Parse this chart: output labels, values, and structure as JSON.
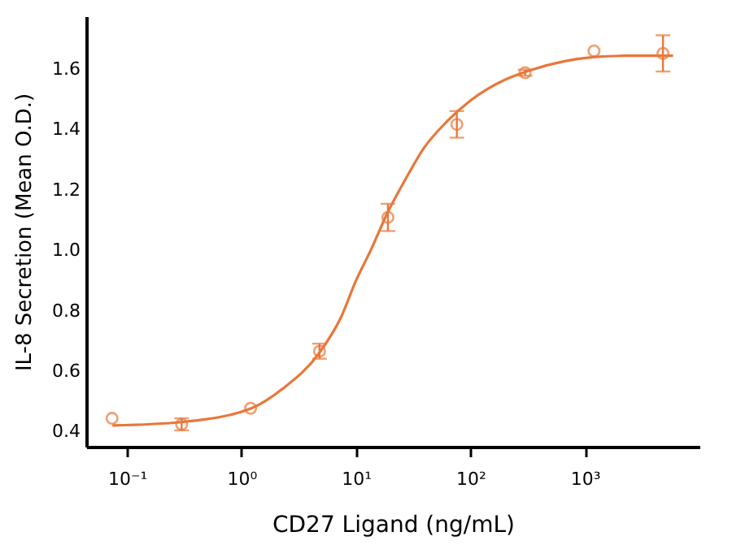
{
  "chart_data": {
    "type": "scatter",
    "xlabel": "CD27 Ligand (ng/mL)",
    "ylabel": "IL-8 Secretion (Mean O.D.)",
    "log": "x",
    "grid": false,
    "xlim": [
      0.044,
      10000
    ],
    "xticks": [
      {
        "value": 0.1,
        "label": "10⁻¹"
      },
      {
        "value": 1,
        "label": "10⁰"
      },
      {
        "value": 10,
        "label": "10¹"
      },
      {
        "value": 100,
        "label": "10²"
      },
      {
        "value": 1000,
        "label": "10³"
      }
    ],
    "ylim": [
      0.35,
      1.775
    ],
    "yticks": [
      {
        "value": 0.4,
        "label": "0.4"
      },
      {
        "value": 0.6,
        "label": "0.6"
      },
      {
        "value": 0.8,
        "label": "0.8"
      },
      {
        "value": 1.0,
        "label": "1.0"
      },
      {
        "value": 1.2,
        "label": "1.2"
      },
      {
        "value": 1.4,
        "label": "1.4"
      },
      {
        "value": 1.6,
        "label": "1.6"
      }
    ],
    "series": [
      {
        "marker": "circle",
        "color": "#e8773a",
        "x": [
          0.074,
          0.3,
          1.2,
          4.8,
          19,
          76,
          300,
          1200,
          4800
        ],
        "values": [
          0.444,
          0.424,
          0.477,
          0.666,
          1.109,
          1.417,
          1.588,
          1.66,
          1.652
        ],
        "errors": [
          null,
          0.02,
          null,
          0.025,
          0.045,
          0.044,
          0.01,
          null,
          0.06
        ]
      },
      {
        "type": "line",
        "marker": "none",
        "line_style": "solid",
        "color": "#e8773a",
        "x": [
          0.0745,
          0.307,
          1.22,
          2.29,
          4.81,
          7.45,
          10,
          13.4,
          19.1,
          27.3,
          38.9,
          62.4,
          100,
          203,
          307,
          662,
          1222,
          2153,
          5875
        ],
        "values": [
          0.42,
          0.432,
          0.477,
          0.542,
          0.662,
          0.781,
          0.9,
          0.999,
          1.129,
          1.238,
          1.337,
          1.427,
          1.496,
          1.566,
          1.592,
          1.626,
          1.64,
          1.644,
          1.644
        ]
      }
    ]
  }
}
